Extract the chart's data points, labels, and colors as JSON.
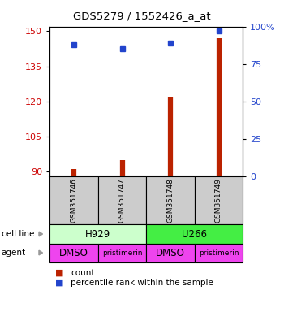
{
  "title": "GDS5279 / 1552426_a_at",
  "samples": [
    "GSM351746",
    "GSM351747",
    "GSM351748",
    "GSM351749"
  ],
  "counts": [
    91,
    95,
    122,
    147
  ],
  "percentile_ranks": [
    88,
    85,
    89,
    97
  ],
  "ylim_left": [
    88,
    152
  ],
  "ylim_right": [
    0,
    100
  ],
  "yticks_left": [
    90,
    105,
    120,
    135,
    150
  ],
  "yticks_right": [
    0,
    25,
    50,
    75,
    100
  ],
  "ytick_right_labels": [
    "0",
    "25",
    "50",
    "75",
    "100%"
  ],
  "bar_color": "#bb2200",
  "dot_color": "#2244cc",
  "cell_line_data": [
    {
      "label": "H929",
      "color": "#ccffcc",
      "start": 0,
      "end": 2
    },
    {
      "label": "U266",
      "color": "#44ee44",
      "start": 2,
      "end": 4
    }
  ],
  "agent_labels": [
    "DMSO",
    "pristimerin",
    "DMSO",
    "pristimerin"
  ],
  "agent_color": "#ee44ee",
  "sample_box_color": "#cccccc",
  "axis_color_left": "#cc0000",
  "axis_color_right": "#2244cc",
  "grid_yticks": [
    105,
    120,
    135
  ],
  "bar_base": 88,
  "legend_count_color": "#bb2200",
  "legend_pct_color": "#2244cc"
}
